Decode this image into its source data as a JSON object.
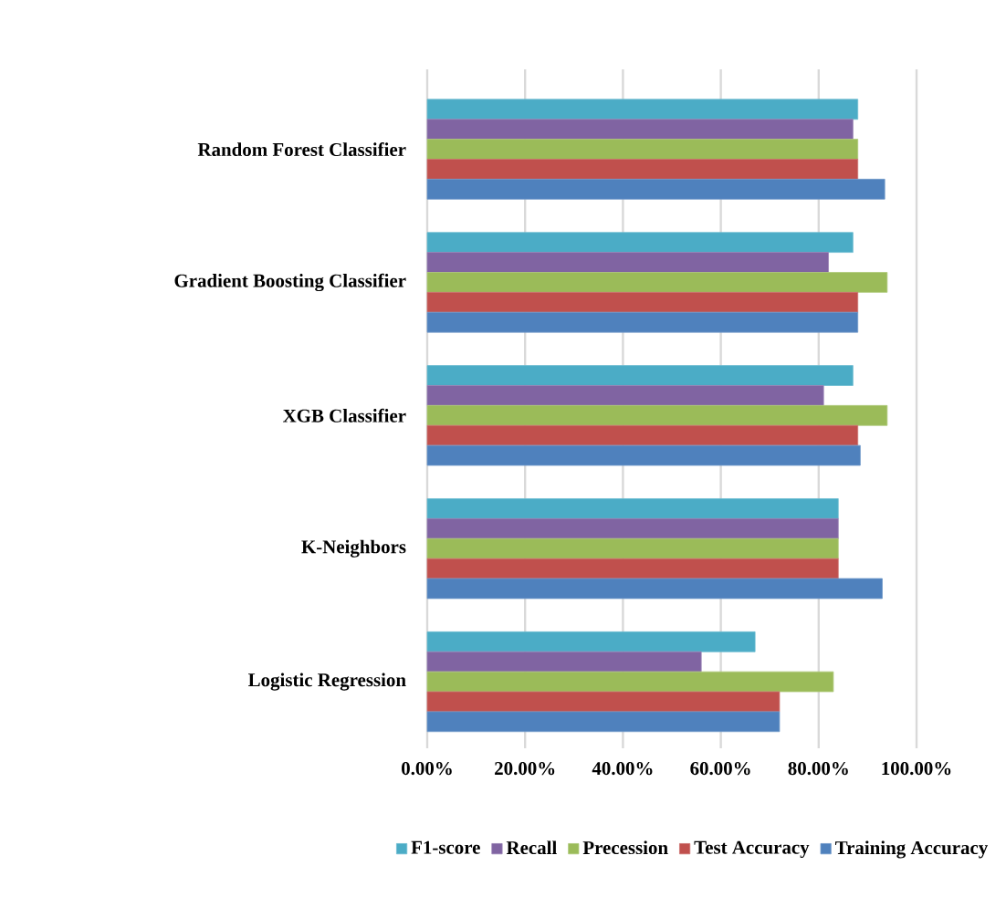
{
  "chart_data": {
    "type": "bar",
    "orientation": "horizontal",
    "categories": [
      "Random Forest Classifier",
      "Gradient Boosting Classifier",
      "XGB Classifier",
      "K-Neighbors",
      "Logistic Regression"
    ],
    "series": [
      {
        "name": "F1-score",
        "color": "#4bacc6",
        "values": [
          88,
          87,
          87,
          84,
          67
        ]
      },
      {
        "name": "Recall",
        "color": "#8064a2",
        "values": [
          87,
          82,
          81,
          84,
          56
        ]
      },
      {
        "name": "Precession",
        "color": "#9bbb59",
        "values": [
          88,
          94,
          94,
          84,
          83
        ]
      },
      {
        "name": "Test Accuracy",
        "color": "#c0504d",
        "values": [
          88,
          88,
          88,
          84,
          72
        ]
      },
      {
        "name": "Training Accuracy",
        "color": "#4f81bd",
        "values": [
          93.5,
          88,
          88.5,
          93,
          72
        ]
      }
    ],
    "xlim": [
      0,
      100
    ],
    "xticks": [
      {
        "value": 0,
        "label": "0.00%"
      },
      {
        "value": 20,
        "label": "20.00%"
      },
      {
        "value": 40,
        "label": "40.00%"
      },
      {
        "value": 60,
        "label": "60.00%"
      },
      {
        "value": 80,
        "label": "80.00%"
      },
      {
        "value": 100,
        "label": "100.00%"
      }
    ],
    "grid": "x",
    "legend": "bottom"
  }
}
